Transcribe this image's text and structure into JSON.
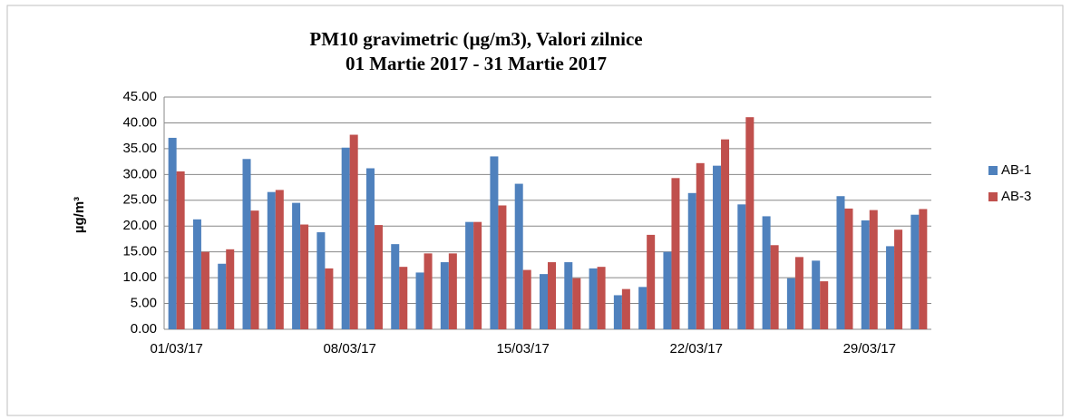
{
  "chart_data": {
    "type": "bar",
    "title": [
      "PM10 gravimetric (µg/m3), Valori zilnice",
      "01 Martie 2017 - 31 Martie 2017"
    ],
    "ylabel": "µg/m³",
    "categories": [
      "01/03/17",
      null,
      null,
      null,
      null,
      null,
      null,
      "08/03/17",
      null,
      null,
      null,
      null,
      null,
      null,
      "15/03/17",
      null,
      null,
      null,
      null,
      null,
      null,
      "22/03/17",
      null,
      null,
      null,
      null,
      null,
      null,
      "29/03/17",
      null,
      null
    ],
    "series": [
      {
        "name": "AB-1",
        "color": "#4f81bd",
        "values": [
          37.1,
          21.3,
          12.7,
          33.0,
          26.6,
          24.5,
          18.8,
          35.2,
          31.2,
          16.5,
          11.0,
          13.0,
          20.8,
          33.5,
          28.2,
          10.7,
          13.0,
          11.8,
          6.6,
          8.2,
          15.0,
          26.4,
          31.7,
          24.2,
          21.9,
          9.9,
          13.3,
          25.8,
          21.1,
          16.1,
          22.2
        ]
      },
      {
        "name": "AB-3",
        "color": "#c0504d",
        "values": [
          30.6,
          15.0,
          15.5,
          23.0,
          27.0,
          20.3,
          11.8,
          37.7,
          20.2,
          12.1,
          14.7,
          14.7,
          20.8,
          24.0,
          11.5,
          13.0,
          9.9,
          12.1,
          7.8,
          18.3,
          29.3,
          32.2,
          36.8,
          41.1,
          16.3,
          14.0,
          9.3,
          23.4,
          23.1,
          19.3,
          23.3
        ]
      }
    ],
    "ylim": [
      0,
      45
    ],
    "yticks": [
      {
        "value": 0,
        "label": "0.00"
      },
      {
        "value": 5,
        "label": "5.00"
      },
      {
        "value": 10,
        "label": "10.00"
      },
      {
        "value": 15,
        "label": "15.00"
      },
      {
        "value": 20,
        "label": "20.00"
      },
      {
        "value": 25,
        "label": "25.00"
      },
      {
        "value": 30,
        "label": "30.00"
      },
      {
        "value": 35,
        "label": "35.00"
      },
      {
        "value": 40,
        "label": "40.00"
      },
      {
        "value": 45,
        "label": "45.00"
      }
    ],
    "grid": true,
    "legend": "right"
  }
}
